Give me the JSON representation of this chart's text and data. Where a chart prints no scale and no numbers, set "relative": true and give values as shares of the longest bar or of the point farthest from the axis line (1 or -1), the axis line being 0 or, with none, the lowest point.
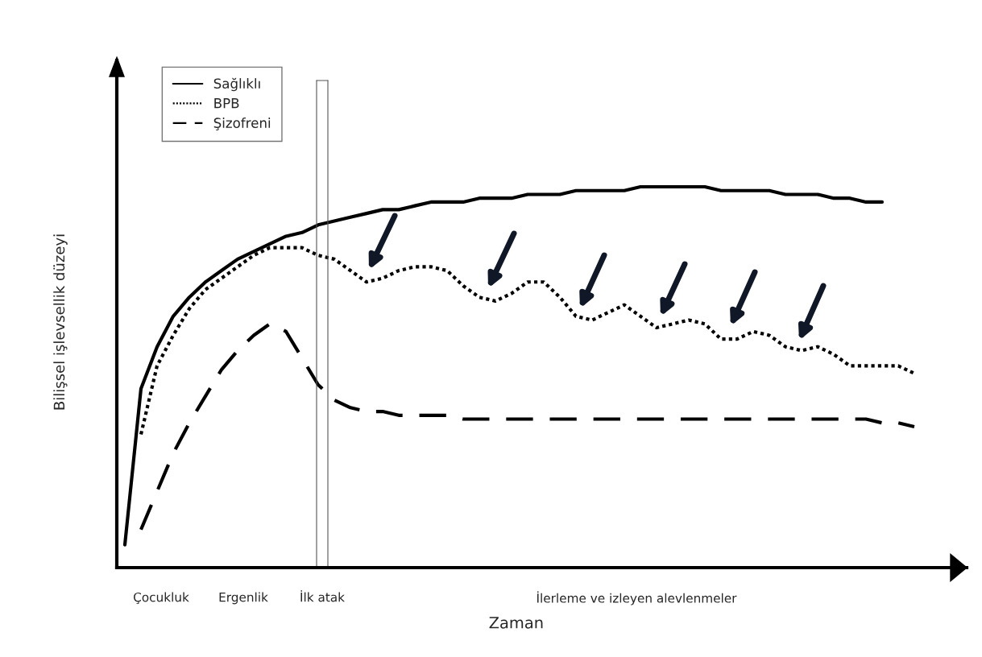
{
  "chart_data": {
    "type": "line",
    "relative": true,
    "xlabel": "Zaman",
    "ylabel": "Bilişsel işlevsellik düzeyi",
    "legend": "top left",
    "categories": [
      null,
      null,
      null,
      null,
      null,
      null,
      null,
      null,
      null,
      null,
      null,
      null,
      null,
      null,
      null,
      null,
      null,
      null,
      null,
      null,
      null,
      null,
      null,
      null,
      null,
      null,
      null,
      null,
      null,
      null,
      null,
      null,
      null,
      null,
      null,
      null,
      null,
      null,
      null,
      null,
      null,
      null,
      null,
      null,
      null,
      null,
      null,
      null,
      null,
      null
    ],
    "annotations": [
      "Çocukluk",
      "Ergenlik",
      "İlk atak",
      "İlerleme ve izleyen alevlenmeler"
    ],
    "series": [
      {
        "name": "Sağlıklı",
        "color": "#000000",
        "line_style": "solid",
        "values": [
          0.06,
          0.47,
          0.58,
          0.66,
          0.71,
          0.75,
          0.78,
          0.81,
          0.83,
          0.85,
          0.87,
          0.88,
          0.9,
          0.91,
          0.92,
          0.93,
          0.94,
          0.94,
          0.95,
          0.96,
          0.96,
          0.96,
          0.97,
          0.97,
          0.97,
          0.98,
          0.98,
          0.98,
          0.99,
          0.99,
          0.99,
          0.99,
          1.0,
          1.0,
          1.0,
          1.0,
          1.0,
          0.99,
          0.99,
          0.99,
          0.99,
          0.98,
          0.98,
          0.98,
          0.97,
          0.97,
          0.96,
          0.96,
          null,
          null
        ]
      },
      {
        "name": "BPB",
        "color": "#000000",
        "line_style": "dotted",
        "values": [
          null,
          0.35,
          0.53,
          0.61,
          0.68,
          0.73,
          0.76,
          0.79,
          0.82,
          0.84,
          0.84,
          0.84,
          0.82,
          0.81,
          0.78,
          0.75,
          0.76,
          0.78,
          0.79,
          0.79,
          0.78,
          0.74,
          0.71,
          0.7,
          0.72,
          0.75,
          0.75,
          0.71,
          0.66,
          0.65,
          0.67,
          0.69,
          0.66,
          0.63,
          0.64,
          0.65,
          0.64,
          0.6,
          0.6,
          0.62,
          0.61,
          0.58,
          0.57,
          0.58,
          0.56,
          0.53,
          0.53,
          0.53,
          0.53,
          0.51
        ]
      },
      {
        "name": "Şizofreni",
        "color": "#000000",
        "line_style": "dashed",
        "values": [
          null,
          0.1,
          0.2,
          0.3,
          0.38,
          0.45,
          0.52,
          0.57,
          0.61,
          0.64,
          0.62,
          0.55,
          0.48,
          0.44,
          0.42,
          0.41,
          0.41,
          0.4,
          0.4,
          0.4,
          0.4,
          0.39,
          0.39,
          0.39,
          0.39,
          0.39,
          0.39,
          0.39,
          0.39,
          0.39,
          0.39,
          0.39,
          0.39,
          0.39,
          0.39,
          0.39,
          0.39,
          0.39,
          0.39,
          0.39,
          0.39,
          0.39,
          0.39,
          0.39,
          0.39,
          0.39,
          0.39,
          0.38,
          0.38,
          0.37
        ]
      }
    ]
  }
}
